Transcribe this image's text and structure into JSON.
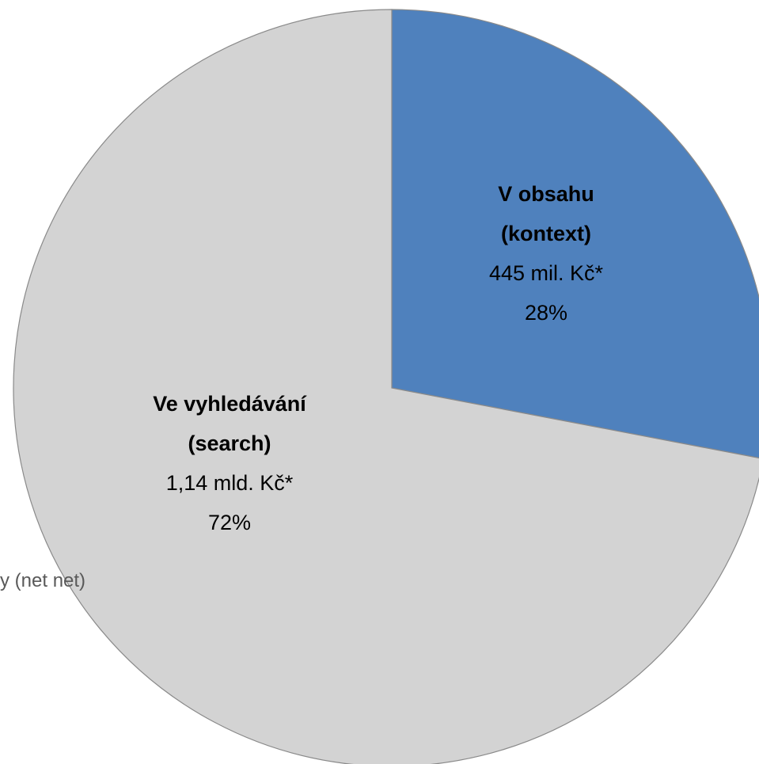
{
  "chart_data": {
    "type": "pie",
    "categories": [
      "V obsahu (kontext)",
      "Ve vyhledávání (search)"
    ],
    "values": [
      28,
      72
    ],
    "value_labels": [
      "28%",
      "72%"
    ],
    "amount_labels": [
      "445 mil. Kč*",
      "1,14 mld. Kč*"
    ],
    "colors": [
      "#4f81bd",
      "#d3d3d3"
    ],
    "footnote": "y (net net)"
  }
}
